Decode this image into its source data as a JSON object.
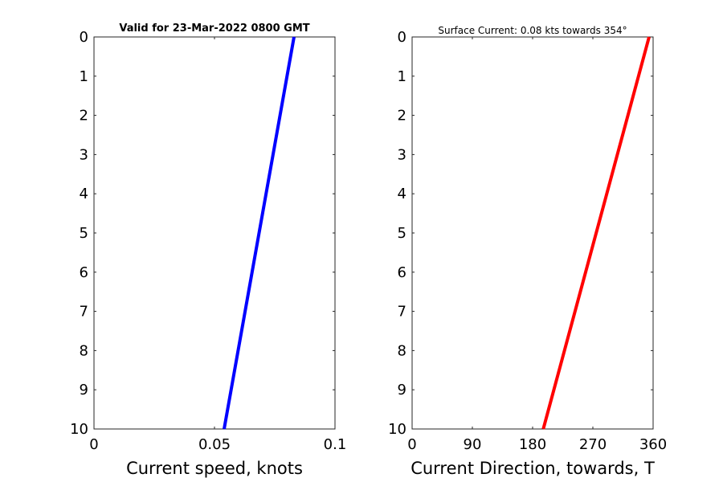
{
  "chart_data": [
    {
      "type": "line",
      "title": "Valid for 23-Mar-2022 0800 GMT",
      "xlabel": "Current speed, knots",
      "ylabel": "",
      "xlim": [
        0,
        0.1
      ],
      "ylim": [
        0,
        10
      ],
      "y_reversed": true,
      "x_ticks": [
        "0",
        "0.05",
        "0.1"
      ],
      "x_tick_values": [
        0,
        0.05,
        0.1
      ],
      "y_ticks": [
        "0",
        "1",
        "2",
        "3",
        "4",
        "5",
        "6",
        "7",
        "8",
        "9",
        "10"
      ],
      "grid": false,
      "series": [
        {
          "color": "#0000ff",
          "x": [
            0.083,
            0.054
          ],
          "y": [
            0,
            10
          ]
        }
      ]
    },
    {
      "type": "line",
      "title": "Surface Current: 0.08 kts towards 354°",
      "xlabel": "Current Direction, towards, T",
      "ylabel": "",
      "xlim": [
        0,
        360
      ],
      "ylim": [
        0,
        10
      ],
      "y_reversed": true,
      "x_ticks": [
        "0",
        "90",
        "180",
        "270",
        "360"
      ],
      "x_tick_values": [
        0,
        90,
        180,
        270,
        360
      ],
      "y_ticks": [
        "0",
        "1",
        "2",
        "3",
        "4",
        "5",
        "6",
        "7",
        "8",
        "9",
        "10"
      ],
      "grid": false,
      "series": [
        {
          "color": "#ff0000",
          "x": [
            354,
            196
          ],
          "y": [
            0,
            10
          ]
        }
      ]
    }
  ]
}
